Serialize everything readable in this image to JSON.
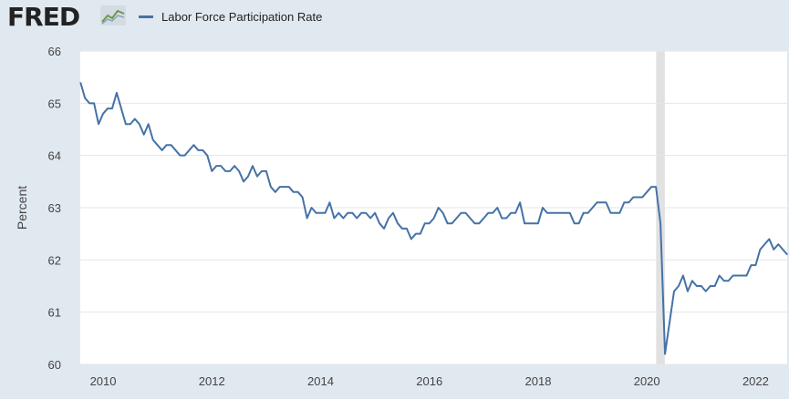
{
  "brand": {
    "name": "FRED",
    "logo_icon": "line-graph-icon"
  },
  "chart_data": {
    "type": "line",
    "title": "",
    "xlabel": "",
    "ylabel": "Percent",
    "ylim": [
      60,
      66
    ],
    "yticks": [
      60,
      61,
      62,
      63,
      64,
      65,
      66
    ],
    "xlim": [
      2009.58,
      2022.58
    ],
    "xticks": [
      2010,
      2012,
      2014,
      2016,
      2018,
      2020,
      2022
    ],
    "grid": "horizontal",
    "legend": "top-left",
    "colors": {
      "line": "#4572a7",
      "recession": "#e1e1e1",
      "plot_bg": "#ffffff",
      "page_bg": "#e1e9f0",
      "grid": "#e6e6e6"
    },
    "recessions": [
      {
        "start": 2020.17,
        "end": 2020.33
      }
    ],
    "series": [
      {
        "name": "Labor Force Participation Rate",
        "start": "2009-08",
        "frequency": "monthly",
        "values": [
          65.4,
          65.1,
          65.0,
          65.0,
          64.6,
          64.8,
          64.9,
          64.9,
          65.2,
          64.9,
          64.6,
          64.6,
          64.7,
          64.6,
          64.4,
          64.6,
          64.3,
          64.2,
          64.1,
          64.2,
          64.2,
          64.1,
          64.0,
          64.0,
          64.1,
          64.2,
          64.1,
          64.1,
          64.0,
          63.7,
          63.8,
          63.8,
          63.7,
          63.7,
          63.8,
          63.7,
          63.5,
          63.6,
          63.8,
          63.6,
          63.7,
          63.7,
          63.4,
          63.3,
          63.4,
          63.4,
          63.4,
          63.3,
          63.3,
          63.2,
          62.8,
          63.0,
          62.9,
          62.9,
          62.9,
          63.1,
          62.8,
          62.9,
          62.8,
          62.9,
          62.9,
          62.8,
          62.9,
          62.9,
          62.8,
          62.9,
          62.7,
          62.6,
          62.8,
          62.9,
          62.7,
          62.6,
          62.6,
          62.4,
          62.5,
          62.5,
          62.7,
          62.7,
          62.8,
          63.0,
          62.9,
          62.7,
          62.7,
          62.8,
          62.9,
          62.9,
          62.8,
          62.7,
          62.7,
          62.8,
          62.9,
          62.9,
          63.0,
          62.8,
          62.8,
          62.9,
          62.9,
          63.1,
          62.7,
          62.7,
          62.7,
          62.7,
          63.0,
          62.9,
          62.9,
          62.9,
          62.9,
          62.9,
          62.9,
          62.7,
          62.7,
          62.9,
          62.9,
          63.0,
          63.1,
          63.1,
          63.1,
          62.9,
          62.9,
          62.9,
          63.1,
          63.1,
          63.2,
          63.2,
          63.2,
          63.3,
          63.4,
          63.4,
          62.7,
          60.2,
          60.8,
          61.4,
          61.5,
          61.7,
          61.4,
          61.6,
          61.5,
          61.5,
          61.4,
          61.5,
          61.5,
          61.7,
          61.6,
          61.6,
          61.7,
          61.7,
          61.7,
          61.7,
          61.9,
          61.9,
          62.2,
          62.3,
          62.4,
          62.2,
          62.3,
          62.2,
          62.1
        ]
      }
    ]
  }
}
